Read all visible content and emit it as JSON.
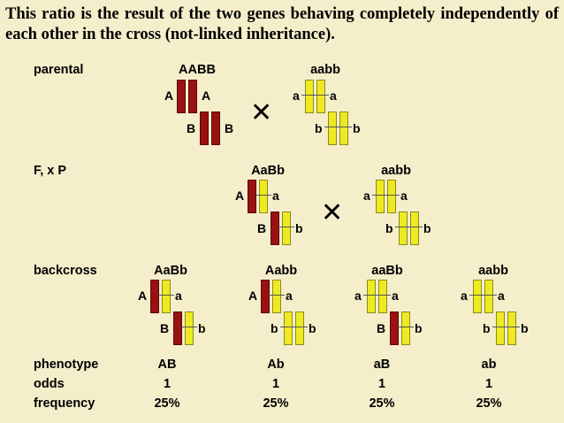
{
  "caption": "This ratio is the result of the two genes behaving completely independently of each other in the cross (not-linked inheritance).",
  "rows": {
    "parental": "parental",
    "f1xp": "F, x P",
    "backcross": "backcross",
    "phenotype": "phenotype",
    "odds": "odds",
    "frequency": "frequency"
  },
  "parental": {
    "left": {
      "genotype": "AABB",
      "a_left": "A",
      "a_right": "A",
      "b_left": "B",
      "b_right": "B"
    },
    "right": {
      "genotype": "aabb",
      "a_left": "a",
      "a_right": "a",
      "b_left": "b",
      "b_right": "b"
    }
  },
  "f1": {
    "left": {
      "genotype": "AaBb",
      "a_left": "A",
      "a_right": "a",
      "b_left": "B",
      "b_right": "b"
    },
    "right": {
      "genotype": "aabb",
      "a_left": "a",
      "a_right": "a",
      "b_left": "b",
      "b_right": "b"
    }
  },
  "offspring": [
    {
      "genotype": "AaBb",
      "a_left": "A",
      "a_right": "a",
      "b_left": "B",
      "b_right": "b",
      "phenotype": "AB",
      "odds": "1",
      "frequency": "25%"
    },
    {
      "genotype": "Aabb",
      "a_left": "A",
      "a_right": "a",
      "b_left": "b",
      "b_right": "b",
      "phenotype": "Ab",
      "odds": "1",
      "frequency": "25%"
    },
    {
      "genotype": "aaBb",
      "a_left": "a",
      "a_right": "a",
      "b_left": "B",
      "b_right": "b",
      "phenotype": "aB",
      "odds": "1",
      "frequency": "25%"
    },
    {
      "genotype": "aabb",
      "a_left": "a",
      "a_right": "a",
      "b_left": "b",
      "b_right": "b",
      "phenotype": "ab",
      "odds": "1",
      "frequency": "25%"
    }
  ],
  "colors": {
    "dominant_chromosome": "#9a1111",
    "recessive_chromosome": "#eeea22",
    "background": "#f5eecb"
  },
  "icons": {
    "cross": "cross-x-icon"
  }
}
